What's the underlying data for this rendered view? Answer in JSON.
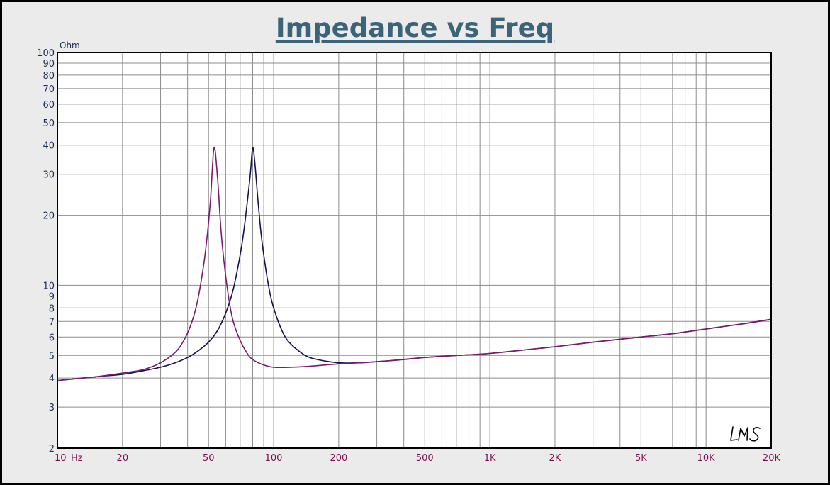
{
  "chart_data": {
    "type": "line",
    "title": "Impedance vs Freq",
    "ylabel": "Ohm",
    "x_unit_label": "Hz",
    "x_scale": "log",
    "y_scale": "log",
    "xlim": [
      10,
      20000
    ],
    "ylim": [
      2,
      100
    ],
    "grid": true,
    "x_tick_values": [
      10,
      20,
      50,
      100,
      200,
      500,
      1000,
      2000,
      5000,
      10000,
      20000
    ],
    "x_tick_labels": [
      "10",
      "20",
      "50",
      "100",
      "200",
      "500",
      "1K",
      "2K",
      "5K",
      "10K",
      "20K"
    ],
    "y_tick_values": [
      2,
      3,
      4,
      5,
      6,
      7,
      8,
      9,
      10,
      20,
      30,
      40,
      50,
      60,
      70,
      80,
      90,
      100
    ],
    "y_tick_labels": [
      "2",
      "3",
      "4",
      "5",
      "6",
      "7",
      "8",
      "9",
      "10",
      "20",
      "30",
      "40",
      "50",
      "60",
      "70",
      "80",
      "90",
      "100"
    ],
    "series": [
      {
        "color": "#12124e",
        "x": [
          10,
          15,
          20,
          25,
          30,
          35,
          40,
          45,
          50,
          55,
          60,
          65,
          70,
          73,
          76,
          78,
          80,
          82,
          84,
          87,
          90,
          95,
          100,
          110,
          120,
          140,
          160,
          200,
          250,
          300,
          400,
          500,
          700,
          1000,
          1500,
          2000,
          3000,
          5000,
          7000,
          10000,
          15000,
          20000
        ],
        "y": [
          3.9,
          4.05,
          4.15,
          4.3,
          4.45,
          4.65,
          4.9,
          5.25,
          5.7,
          6.4,
          7.6,
          9.6,
          13.5,
          17.5,
          24,
          30,
          39,
          33,
          25,
          17.5,
          13.5,
          9.8,
          8.0,
          6.3,
          5.6,
          5.0,
          4.8,
          4.65,
          4.65,
          4.7,
          4.8,
          4.9,
          5.0,
          5.1,
          5.3,
          5.45,
          5.7,
          6.0,
          6.2,
          6.5,
          6.85,
          7.15
        ]
      },
      {
        "color": "#7a1a6e",
        "x": [
          10,
          15,
          20,
          25,
          30,
          35,
          38,
          41,
          44,
          47,
          49,
          51,
          53,
          55,
          57,
          59,
          62,
          65,
          70,
          75,
          80,
          90,
          100,
          120,
          150,
          200,
          300,
          500,
          700,
          1000,
          1500,
          2000,
          3000,
          5000,
          7000,
          10000,
          15000,
          20000
        ],
        "y": [
          3.9,
          4.05,
          4.2,
          4.35,
          4.65,
          5.15,
          5.7,
          6.6,
          8.2,
          11.5,
          15.5,
          23,
          39,
          29,
          17.5,
          12.5,
          8.8,
          7.0,
          5.8,
          5.15,
          4.8,
          4.55,
          4.45,
          4.45,
          4.5,
          4.6,
          4.7,
          4.9,
          5.0,
          5.1,
          5.3,
          5.45,
          5.7,
          6.0,
          6.2,
          6.5,
          6.85,
          7.15
        ]
      }
    ]
  },
  "watermark": "LMS"
}
